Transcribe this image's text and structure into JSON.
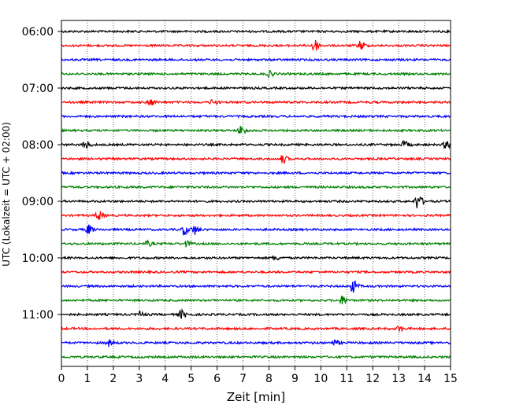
{
  "chart_data": {
    "type": "line",
    "title": "",
    "xlabel": "Zeit  [min]",
    "ylabel": "UTC (Lokalzeit = UTC + 02:00)",
    "xlim": [
      0,
      15
    ],
    "x_ticks": [
      0,
      1,
      2,
      3,
      4,
      5,
      6,
      7,
      8,
      9,
      10,
      11,
      12,
      13,
      14,
      15
    ],
    "grid": "vertical-dotted",
    "trace_interval_min": 15,
    "y_tick_labels": [
      "06:00",
      "07:00",
      "08:00",
      "09:00",
      "10:00",
      "11:00"
    ],
    "trace_colors": [
      "#000000",
      "#ff0000",
      "#0000ff",
      "#008000"
    ],
    "traces": [
      {
        "start": "06:00",
        "color": "#000000",
        "events": []
      },
      {
        "start": "06:15",
        "color": "#ff0000",
        "events": [
          {
            "t": 9.7,
            "amp": 9
          },
          {
            "t": 11.5,
            "amp": 6
          }
        ]
      },
      {
        "start": "06:30",
        "color": "#0000ff",
        "events": []
      },
      {
        "start": "06:45",
        "color": "#008000",
        "events": [
          {
            "t": 8.0,
            "amp": 3
          }
        ]
      },
      {
        "start": "07:00",
        "color": "#000000",
        "events": []
      },
      {
        "start": "07:15",
        "color": "#ff0000",
        "events": [
          {
            "t": 3.4,
            "amp": 4
          },
          {
            "t": 5.8,
            "amp": 3
          }
        ]
      },
      {
        "start": "07:30",
        "color": "#0000ff",
        "events": []
      },
      {
        "start": "07:45",
        "color": "#008000",
        "events": [
          {
            "t": 6.9,
            "amp": 6
          }
        ]
      },
      {
        "start": "08:00",
        "color": "#000000",
        "events": [
          {
            "t": 0.9,
            "amp": 5
          },
          {
            "t": 13.2,
            "amp": 4
          },
          {
            "t": 14.8,
            "amp": 5
          }
        ]
      },
      {
        "start": "08:15",
        "color": "#ff0000",
        "events": [
          {
            "t": 8.5,
            "amp": 5
          }
        ]
      },
      {
        "start": "08:30",
        "color": "#0000ff",
        "events": []
      },
      {
        "start": "08:45",
        "color": "#008000",
        "events": []
      },
      {
        "start": "09:00",
        "color": "#000000",
        "events": [
          {
            "t": 13.7,
            "amp": 9
          }
        ]
      },
      {
        "start": "09:15",
        "color": "#ff0000",
        "events": [
          {
            "t": 1.4,
            "amp": 6
          }
        ]
      },
      {
        "start": "09:30",
        "color": "#0000ff",
        "events": [
          {
            "t": 1.0,
            "amp": 6
          },
          {
            "t": 4.7,
            "amp": 6
          },
          {
            "t": 5.1,
            "amp": 6
          }
        ]
      },
      {
        "start": "09:45",
        "color": "#008000",
        "events": [
          {
            "t": 3.3,
            "amp": 3
          },
          {
            "t": 4.8,
            "amp": 3
          }
        ]
      },
      {
        "start": "10:00",
        "color": "#000000",
        "events": [
          {
            "t": 8.2,
            "amp": 3
          }
        ]
      },
      {
        "start": "10:15",
        "color": "#ff0000",
        "events": []
      },
      {
        "start": "10:30",
        "color": "#0000ff",
        "events": [
          {
            "t": 11.2,
            "amp": 8
          }
        ]
      },
      {
        "start": "10:45",
        "color": "#008000",
        "events": [
          {
            "t": 10.8,
            "amp": 5
          }
        ]
      },
      {
        "start": "11:00",
        "color": "#000000",
        "events": [
          {
            "t": 4.6,
            "amp": 5
          },
          {
            "t": 3.0,
            "amp": 3
          }
        ]
      },
      {
        "start": "11:15",
        "color": "#ff0000",
        "events": [
          {
            "t": 13.0,
            "amp": 3
          }
        ]
      },
      {
        "start": "11:30",
        "color": "#0000ff",
        "events": [
          {
            "t": 1.8,
            "amp": 4
          },
          {
            "t": 10.5,
            "amp": 3
          }
        ]
      },
      {
        "start": "11:45",
        "color": "#008000",
        "events": []
      }
    ]
  }
}
